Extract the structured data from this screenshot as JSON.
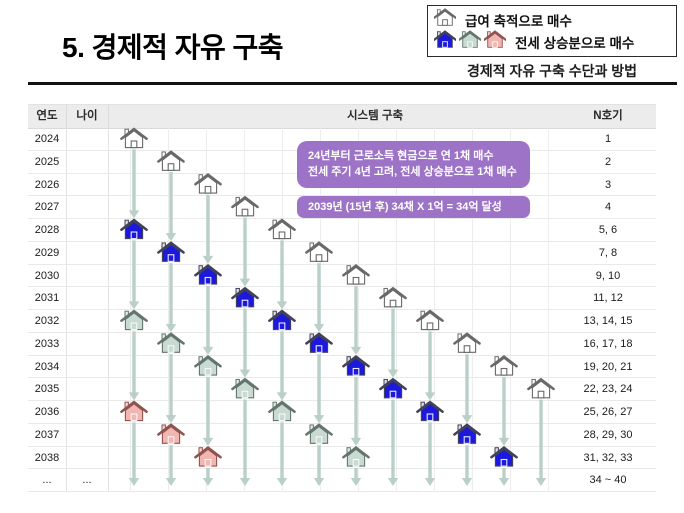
{
  "slide_title": "5. 경제적 자유 구축",
  "legend": {
    "salary_label": "급여 축적으로 매수",
    "jeonse_label": "전세 상승분으로 매수",
    "caption": "경제적 자유 구축 수단과 방법"
  },
  "callouts": {
    "bg_color": "#9c73c6",
    "plan": {
      "line1": "24년부터 근로소득 현금으로 연 1채 매수",
      "line2": "전세 주기 4년 고려, 전세 상승분으로 1채 매수"
    },
    "goal": {
      "line1": "2039년 (15년  후) 34채 X 1억 = 34억 달성"
    }
  },
  "table": {
    "headers": {
      "year": "연도",
      "age": "나이",
      "system": "시스템 구축",
      "units": "N호기"
    },
    "rows": [
      {
        "year": "2024",
        "age": "",
        "units": "1"
      },
      {
        "year": "2025",
        "age": "",
        "units": "2"
      },
      {
        "year": "2026",
        "age": "",
        "units": "3"
      },
      {
        "year": "2027",
        "age": "",
        "units": "4"
      },
      {
        "year": "2028",
        "age": "",
        "units": "5, 6"
      },
      {
        "year": "2029",
        "age": "",
        "units": "7, 8"
      },
      {
        "year": "2030",
        "age": "",
        "units": "9, 10"
      },
      {
        "year": "2031",
        "age": "",
        "units": "11, 12"
      },
      {
        "year": "2032",
        "age": "",
        "units": "13, 14, 15"
      },
      {
        "year": "2033",
        "age": "",
        "units": "16, 17, 18"
      },
      {
        "year": "2034",
        "age": "",
        "units": "19, 20, 21"
      },
      {
        "year": "2035",
        "age": "",
        "units": "22, 23, 24"
      },
      {
        "year": "2036",
        "age": "",
        "units": "25, 26, 27"
      },
      {
        "year": "2037",
        "age": "",
        "units": "28, 29, 30"
      },
      {
        "year": "2038",
        "age": "",
        "units": "31, 32, 33"
      },
      {
        "year": "...",
        "age": "...",
        "units": "34 ~ 40"
      }
    ]
  },
  "diagram": {
    "arrow_color": "#b9cfc8",
    "start_year": 2024,
    "house_styles": {
      "salary": {
        "body": "#ffffff",
        "roof": "#ffffff",
        "stroke": "#696969",
        "door": "#696969"
      },
      "jeonse1": {
        "body": "#1c19dd",
        "roof": "#dddde6",
        "stroke": "#41415a",
        "door": "#e9e9ff"
      },
      "jeonse2": {
        "body": "#c8dad2",
        "roof": "#e3ece7",
        "stroke": "#637membership0_ignore",
        "door": "#f5f9f7"
      },
      "jeonse3": {
        "body": "#f1b6b1",
        "roof": "#f4d6d3",
        "stroke": "#8f544f",
        "door": "#fdf4f3"
      }
    },
    "columns": [
      {
        "col": 1,
        "houses": [
          {
            "year": 2024,
            "type": "salary"
          },
          {
            "year": 2028,
            "type": "jeonse1"
          },
          {
            "year": 2032,
            "type": "jeonse2"
          },
          {
            "year": 2036,
            "type": "jeonse3"
          }
        ]
      },
      {
        "col": 2,
        "houses": [
          {
            "year": 2025,
            "type": "salary"
          },
          {
            "year": 2029,
            "type": "jeonse1"
          },
          {
            "year": 2033,
            "type": "jeonse2"
          },
          {
            "year": 2037,
            "type": "jeonse3"
          }
        ]
      },
      {
        "col": 3,
        "houses": [
          {
            "year": 2026,
            "type": "salary"
          },
          {
            "year": 2030,
            "type": "jeonse1"
          },
          {
            "year": 2034,
            "type": "jeonse2"
          },
          {
            "year": 2038,
            "type": "jeonse3"
          }
        ]
      },
      {
        "col": 4,
        "houses": [
          {
            "year": 2027,
            "type": "salary"
          },
          {
            "year": 2031,
            "type": "jeonse1"
          },
          {
            "year": 2035,
            "type": "jeonse2"
          }
        ]
      },
      {
        "col": 5,
        "houses": [
          {
            "year": 2028,
            "type": "salary"
          },
          {
            "year": 2032,
            "type": "jeonse1"
          },
          {
            "year": 2036,
            "type": "jeonse2"
          }
        ]
      },
      {
        "col": 6,
        "houses": [
          {
            "year": 2029,
            "type": "salary"
          },
          {
            "year": 2033,
            "type": "jeonse1"
          },
          {
            "year": 2037,
            "type": "jeonse2"
          }
        ]
      },
      {
        "col": 7,
        "houses": [
          {
            "year": 2030,
            "type": "salary"
          },
          {
            "year": 2034,
            "type": "jeonse1"
          },
          {
            "year": 2038,
            "type": "jeonse2"
          }
        ]
      },
      {
        "col": 8,
        "houses": [
          {
            "year": 2031,
            "type": "salary"
          },
          {
            "year": 2035,
            "type": "jeonse1"
          }
        ]
      },
      {
        "col": 9,
        "houses": [
          {
            "year": 2032,
            "type": "salary"
          },
          {
            "year": 2036,
            "type": "jeonse1"
          }
        ]
      },
      {
        "col": 10,
        "houses": [
          {
            "year": 2033,
            "type": "salary"
          },
          {
            "year": 2037,
            "type": "jeonse1"
          }
        ]
      },
      {
        "col": 11,
        "houses": [
          {
            "year": 2034,
            "type": "salary"
          },
          {
            "year": 2038,
            "type": "jeonse1"
          }
        ]
      },
      {
        "col": 12,
        "houses": [
          {
            "year": 2035,
            "type": "salary"
          }
        ]
      }
    ]
  }
}
